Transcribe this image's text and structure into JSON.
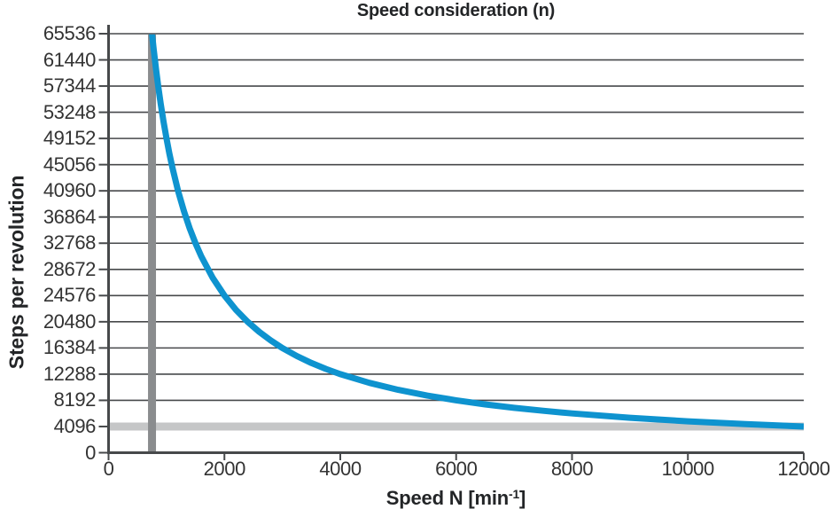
{
  "chart_data": {
    "type": "line",
    "title": "Speed consideration (n)",
    "xlabel": "Speed N [min⁻¹]",
    "xlabel_parts": {
      "base": "Speed N [min",
      "sup": "-1",
      "close": "]"
    },
    "ylabel": "Steps per revolution",
    "xlim": [
      0,
      12000
    ],
    "ylim": [
      0,
      65536
    ],
    "x_ticks": [
      0,
      2000,
      4000,
      6000,
      8000,
      10000,
      12000
    ],
    "y_ticks": [
      0,
      4096,
      8192,
      12288,
      16384,
      20480,
      24576,
      28672,
      32768,
      36864,
      40960,
      45056,
      49152,
      53248,
      57344,
      61440,
      65536
    ],
    "grid": "horizontal",
    "legend": "none",
    "series": [
      {
        "name": "min-steps-level-marker",
        "type": "hline",
        "y": 4096,
        "color": "#C5C6C7",
        "stroke_width": 9
      },
      {
        "name": "max-resolution-speed-marker",
        "type": "vline",
        "x": 750,
        "color": "#8A8C8E",
        "stroke_width": 9
      },
      {
        "name": "resolution-vs-speed-curve",
        "type": "line",
        "color": "#0E93CF",
        "stroke_width": 7,
        "formula": "steps = 49152000 / speed",
        "x": [
          750,
          780,
          820,
          860,
          900,
          950,
          1000,
          1050,
          1100,
          1200,
          1300,
          1400,
          1500,
          1600,
          1800,
          2000,
          2200,
          2400,
          2600,
          2800,
          3000,
          3250,
          3500,
          3750,
          4000,
          4500,
          5000,
          5500,
          6000,
          6500,
          7000,
          7500,
          8000,
          9000,
          10000,
          11000,
          12000
        ],
        "y": [
          65536,
          63015,
          59941,
          57153,
          54613,
          51739,
          49152,
          46811,
          44684,
          40960,
          37809,
          35109,
          32768,
          30720,
          27307,
          24576,
          22342,
          20480,
          18905,
          17554,
          16384,
          15124,
          14043,
          13107,
          12288,
          10923,
          9830,
          8937,
          8192,
          7562,
          7022,
          6554,
          6144,
          5461,
          4915,
          4468,
          4096
        ]
      }
    ]
  },
  "styles": {
    "grid_color": "#47494B",
    "axis_color": "#47494B",
    "tick_text_color": "#333333",
    "label_text_color": "#232527",
    "background": "#ffffff"
  }
}
